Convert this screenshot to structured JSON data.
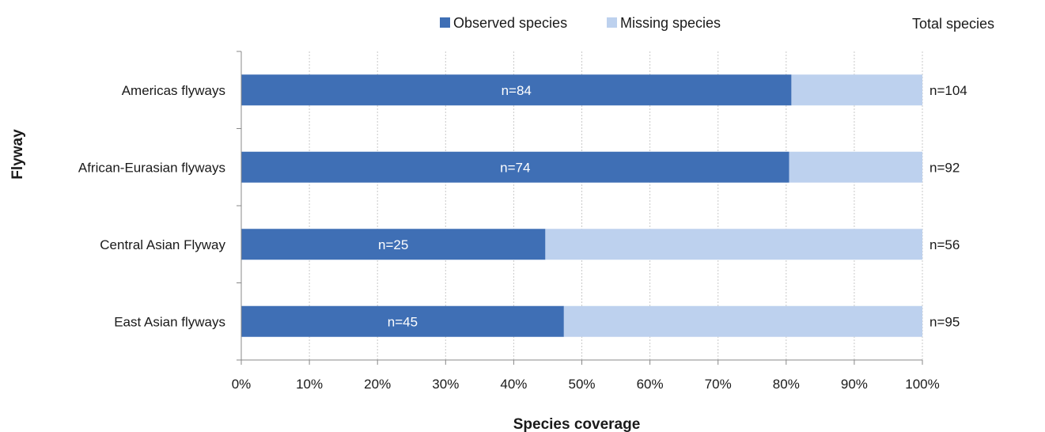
{
  "chart_data": {
    "type": "bar",
    "orientation": "horizontal",
    "stacked": true,
    "percent_stacked": true,
    "categories": [
      "Americas flyways",
      "African-Eurasian flyways",
      "Central Asian Flyway",
      "East Asian flyways"
    ],
    "series": [
      {
        "name": "Observed species",
        "values": [
          84,
          74,
          25,
          45
        ],
        "color": "#3f6fb5"
      },
      {
        "name": "Missing species",
        "values": [
          20,
          18,
          31,
          50
        ],
        "color": "#bdd1ee"
      }
    ],
    "bar_labels": [
      "n=84",
      "n=74",
      "n=25",
      "n=45"
    ],
    "totals_header": "Total species",
    "totals": [
      "n=104",
      "n=92",
      "n=56",
      "n=95"
    ],
    "xlabel": "Species coverage",
    "ylabel": "Flyway",
    "xlim": [
      0,
      100
    ],
    "xticks": [
      "0%",
      "10%",
      "20%",
      "30%",
      "40%",
      "50%",
      "60%",
      "70%",
      "80%",
      "90%",
      "100%"
    ],
    "grid": "vertical dotted",
    "legend_position": "top"
  }
}
